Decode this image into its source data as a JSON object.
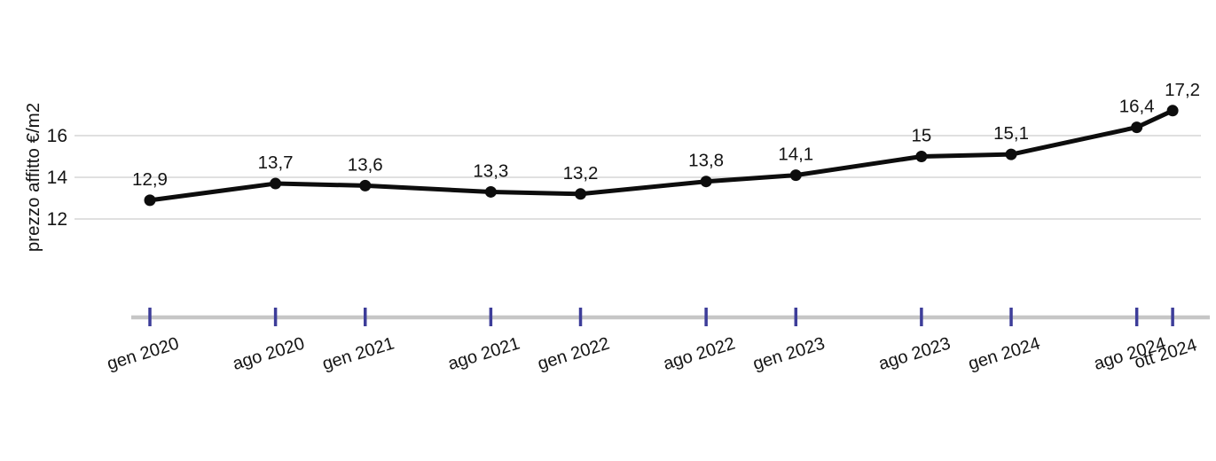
{
  "chart_data": {
    "type": "line",
    "title": "",
    "ylabel": "prezzo affitto €/m2",
    "xlabel": "",
    "legend": "none",
    "grid": "horizontal",
    "categories": [
      "gen 2020",
      "ago 2020",
      "gen 2021",
      "ago 2021",
      "gen 2022",
      "ago 2022",
      "gen 2023",
      "ago 2023",
      "gen 2024",
      "ago 2024",
      "ott 2024"
    ],
    "x_months_from_start": [
      0,
      7,
      12,
      19,
      24,
      31,
      36,
      43,
      48,
      55,
      57
    ],
    "values": [
      12.9,
      13.7,
      13.6,
      13.3,
      13.2,
      13.8,
      14.1,
      15,
      15.1,
      16.4,
      17.2
    ],
    "value_labels": [
      "12,9",
      "13,7",
      "13,6",
      "13,3",
      "13,2",
      "13,8",
      "14,1",
      "15",
      "15,1",
      "16,4",
      "17,2"
    ],
    "y_ticks": [
      12,
      14,
      16
    ],
    "ylim": [
      11,
      18
    ],
    "decimal_separator": ",",
    "colors": {
      "line": "#0d0d0d",
      "point": "#0d0d0d",
      "grid": "#d6d6d6",
      "axis_line": "#c6c6c6",
      "tick_mark": "#3d3d99",
      "text": "#141414"
    }
  }
}
